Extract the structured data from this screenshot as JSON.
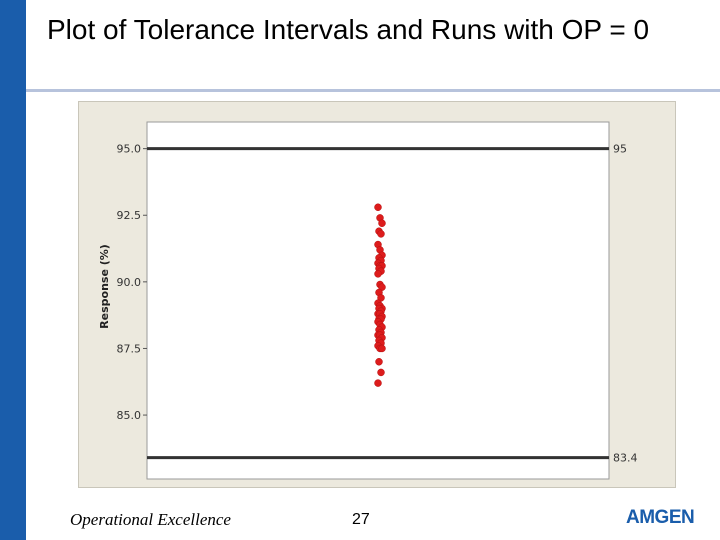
{
  "slide": {
    "title": "Plot of Tolerance Intervals and Runs with OP = 0",
    "footer_left": "Operational Excellence",
    "page_number": "27",
    "logo": "AMGEN"
  },
  "colors": {
    "accent_bar": "#1a5dab",
    "plot_background": "#ece9de",
    "points": "#dd1c1c",
    "limit_lines": "#333333"
  },
  "chart_data": {
    "type": "scatter",
    "title": "",
    "xlabel": "",
    "ylabel": "Response (%)",
    "ylim": [
      82.6,
      96.0
    ],
    "yticks": [
      95.0,
      92.5,
      90.0,
      87.5,
      85.0
    ],
    "ytick_labels": [
      "95.0",
      "92.5",
      "90.0",
      "87.5",
      "85.0"
    ],
    "reference_lines": [
      {
        "label": "95",
        "value": 95.0
      },
      {
        "label": "83.4",
        "value": 83.4
      }
    ],
    "grid": false,
    "legend": "none",
    "series": [
      {
        "values": [
          92.8,
          92.4,
          92.2,
          91.9,
          91.8,
          91.4,
          91.2,
          91.0,
          90.9,
          90.8,
          90.7,
          90.6,
          90.6,
          90.5,
          90.4,
          90.3,
          89.9,
          89.8,
          89.6,
          89.4,
          89.2,
          89.1,
          89.0,
          89.0,
          88.9,
          88.8,
          88.8,
          88.7,
          88.6,
          88.6,
          88.5,
          88.4,
          88.3,
          88.2,
          88.1,
          88.0,
          88.0,
          87.9,
          87.8,
          87.7,
          87.6,
          87.5,
          87.5,
          87.0,
          86.6,
          86.2
        ]
      }
    ]
  }
}
